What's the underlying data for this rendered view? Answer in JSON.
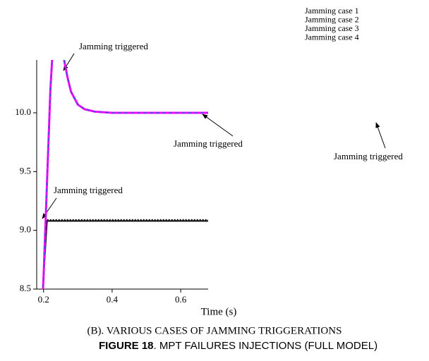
{
  "chart_data": {
    "type": "line",
    "axis_label_x": "Time (s)",
    "subtitle": "(B). VARIOUS CASES OF JAMMING TRIGGERATIONS",
    "caption_bold": "FIGURE 18",
    "caption": ". MPT FAILURES INJECTIONS (FULL MODEL)",
    "annotations": [
      "Jamming triggered",
      "Jamming triggered",
      "Jamming triggered",
      "Jamming triggered"
    ],
    "x": [
      0.195,
      0.2,
      0.21,
      0.22,
      0.225,
      0.24,
      0.26,
      0.27,
      0.28,
      0.3,
      0.32,
      0.35,
      0.4,
      0.5,
      0.6,
      0.68
    ],
    "series": [
      {
        "name": "Jamming case 1",
        "color": "#000000",
        "values": [
          8.3,
          8.6,
          9.08,
          9.08,
          9.08,
          9.08,
          9.08,
          9.08,
          9.08,
          9.08,
          9.08,
          9.08,
          9.08,
          9.08,
          9.08,
          9.08
        ]
      },
      {
        "name": "Jamming case 2",
        "color": "#000000",
        "values": [
          8.3,
          8.6,
          9.09,
          9.09,
          9.09,
          9.09,
          9.09,
          9.09,
          9.09,
          9.09,
          9.09,
          9.09,
          9.09,
          9.09,
          9.09,
          9.09
        ]
      },
      {
        "name": "Jamming case 3",
        "color": "#ff00ff",
        "values": [
          8.3,
          8.6,
          9.4,
          10.2,
          10.45,
          null,
          10.45,
          10.3,
          10.18,
          10.07,
          10.03,
          10.01,
          10.0,
          10.0,
          10.0,
          10.0
        ]
      },
      {
        "name": "Jamming case 4",
        "color": "#3355dd",
        "values": [
          8.3,
          8.6,
          9.4,
          10.2,
          10.45,
          null,
          10.45,
          10.3,
          10.18,
          10.07,
          10.03,
          10.01,
          10.0,
          10.0,
          10.0,
          10.0
        ]
      }
    ],
    "xlim": [
      0.18,
      0.68
    ],
    "xticks": [
      0.2,
      0.4,
      0.6
    ],
    "ylim": [
      8.5,
      10.45
    ],
    "yticks": [
      8.5,
      {
        "value": 9,
        "label": "9.0"
      },
      9.5,
      {
        "value": 10,
        "label": "10.0"
      }
    ]
  }
}
